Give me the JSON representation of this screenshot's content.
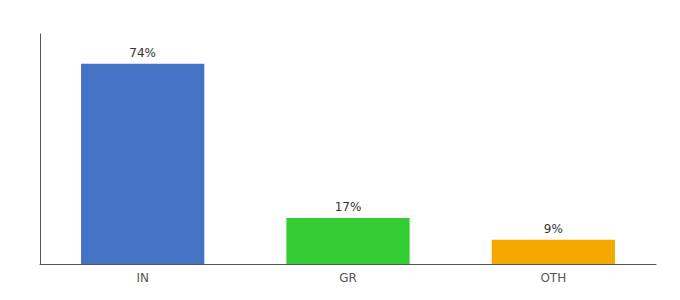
{
  "chart_data": {
    "type": "bar",
    "categories": [
      "IN",
      "GR",
      "OTH"
    ],
    "values": [
      74,
      17,
      9
    ],
    "value_labels": [
      "74%",
      "17%",
      "9%"
    ],
    "colors": [
      "#4472c4",
      "#33cc33",
      "#f5a800"
    ],
    "ylim": [
      0,
      85
    ],
    "grid": false,
    "data_labels": true,
    "tick_labels": "x"
  }
}
